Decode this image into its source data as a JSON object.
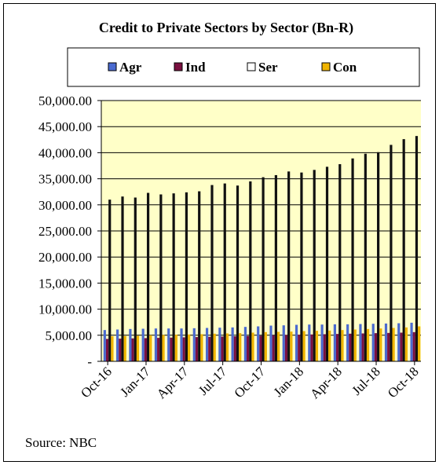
{
  "chart_data": {
    "type": "bar",
    "title": "Credit to Private Sectors by Sector (Bn-R)",
    "source": "Source: NBC",
    "ylim": [
      0,
      50000
    ],
    "yticks": [
      "-",
      "5,000.00",
      "10,000.00",
      "15,000.00",
      "20,000.00",
      "25,000.00",
      "30,000.00",
      "35,000.00",
      "40,000.00",
      "45,000.00",
      "50,000.00"
    ],
    "ytick_values": [
      0,
      5000,
      10000,
      15000,
      20000,
      25000,
      30000,
      35000,
      40000,
      45000,
      50000
    ],
    "categories": [
      "Oct-16",
      "Nov-16",
      "Dec-16",
      "Jan-17",
      "Feb-17",
      "Mar-17",
      "Apr-17",
      "May-17",
      "Jun-17",
      "Jul-17",
      "Aug-17",
      "Sep-17",
      "Oct-17",
      "Nov-17",
      "Dec-17",
      "Jan-18",
      "Feb-18",
      "Mar-18",
      "Apr-18",
      "May-18",
      "Jun-18",
      "Jul-18",
      "Aug-18",
      "Sep-18",
      "Oct-18"
    ],
    "xtick_labels": [
      "Oct-16",
      "Jan-17",
      "Apr-17",
      "Jul-17",
      "Oct-17",
      "Jan-18",
      "Apr-18",
      "Jul-18",
      "Oct-18"
    ],
    "xtick_indices": [
      0,
      3,
      6,
      9,
      12,
      15,
      18,
      21,
      24
    ],
    "series": [
      {
        "name": "Agr",
        "color": "#4a6ad0",
        "values": [
          6000,
          6100,
          6200,
          6250,
          6300,
          6300,
          6300,
          6350,
          6400,
          6450,
          6500,
          6600,
          6700,
          6850,
          6900,
          7000,
          7050,
          7050,
          7100,
          7100,
          7150,
          7200,
          7250,
          7300,
          7400
        ]
      },
      {
        "name": "Ind",
        "color": "#7a1040",
        "values": [
          4300,
          4350,
          4400,
          4450,
          4500,
          4550,
          4600,
          4650,
          4700,
          4750,
          4800,
          4850,
          4900,
          5000,
          5050,
          5100,
          5150,
          5200,
          5250,
          5300,
          5350,
          5400,
          5450,
          5500,
          5600
        ]
      },
      {
        "name": "Ser",
        "color": "#111111",
        "values": [
          31000,
          31600,
          31400,
          32300,
          32000,
          32200,
          32400,
          32600,
          33800,
          34100,
          33700,
          34500,
          35300,
          35700,
          36400,
          36200,
          36700,
          37300,
          37800,
          38900,
          39800,
          40100,
          41500,
          42600,
          43200
        ]
      },
      {
        "name": "Con",
        "color": "#f0b400",
        "values": [
          4800,
          4850,
          4900,
          5000,
          5050,
          5100,
          5150,
          5200,
          5300,
          5350,
          5400,
          5500,
          5600,
          5650,
          5700,
          5800,
          5850,
          5900,
          6000,
          6100,
          6200,
          6300,
          6400,
          6500,
          6700
        ]
      }
    ],
    "legend_position": "top",
    "plot_background": "#ffffc8",
    "grid": true
  }
}
